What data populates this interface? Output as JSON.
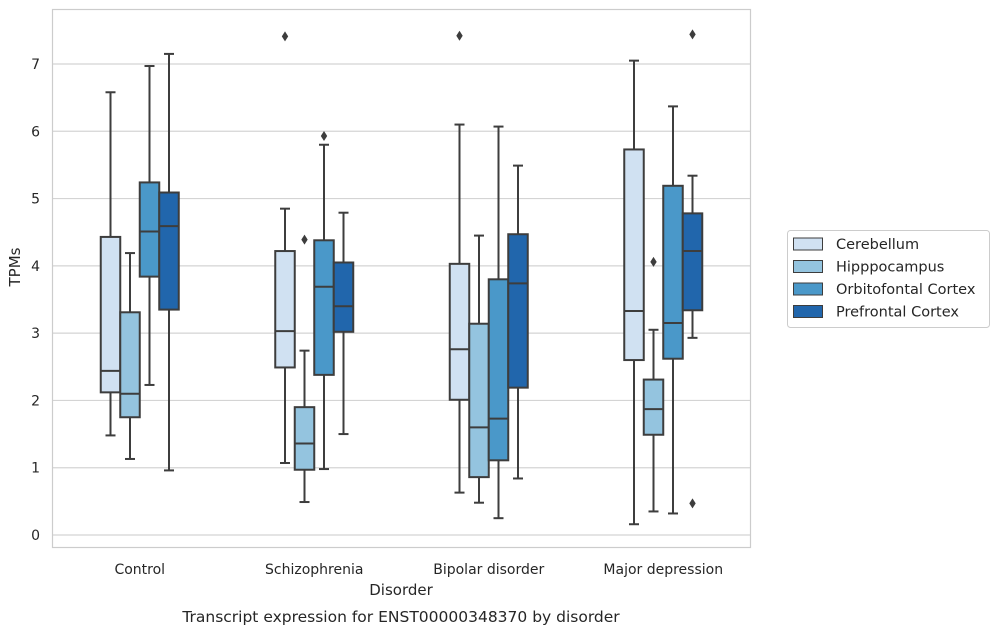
{
  "chart_data": {
    "type": "boxplot",
    "xlabel": "Disorder",
    "ylabel": "TPMs",
    "caption": "Transcript expression for ENST00000348370 by disorder",
    "ylim": [
      -0.2,
      7.85
    ],
    "yticks": [
      0,
      1,
      2,
      3,
      4,
      5,
      6,
      7
    ],
    "grid": "horizontal",
    "legend_position": "right",
    "categories": [
      "Control",
      "Schizophrenia",
      "Bipolar disorder",
      "Major depression"
    ],
    "series": [
      {
        "name": "Cerebellum",
        "color": "#d0e1f2",
        "boxes": [
          {
            "whisker_low": 1.48,
            "q1": 2.12,
            "median": 2.44,
            "q3": 4.43,
            "whisker_high": 6.58,
            "outliers": []
          },
          {
            "whisker_low": 1.07,
            "q1": 2.49,
            "median": 3.03,
            "q3": 4.22,
            "whisker_high": 4.85,
            "outliers": [
              7.41
            ]
          },
          {
            "whisker_low": 0.63,
            "q1": 2.01,
            "median": 2.76,
            "q3": 4.03,
            "whisker_high": 6.1,
            "outliers": [
              7.42
            ]
          },
          {
            "whisker_low": 0.16,
            "q1": 2.6,
            "median": 3.33,
            "q3": 5.73,
            "whisker_high": 7.05,
            "outliers": []
          }
        ]
      },
      {
        "name": "Hipppocampus",
        "color": "#94c4df",
        "boxes": [
          {
            "whisker_low": 1.13,
            "q1": 1.75,
            "median": 2.1,
            "q3": 3.31,
            "whisker_high": 4.19,
            "outliers": []
          },
          {
            "whisker_low": 0.49,
            "q1": 0.97,
            "median": 1.36,
            "q3": 1.9,
            "whisker_high": 2.74,
            "outliers": [
              4.39
            ]
          },
          {
            "whisker_low": 0.48,
            "q1": 0.86,
            "median": 1.6,
            "q3": 3.14,
            "whisker_high": 4.45,
            "outliers": []
          },
          {
            "whisker_low": 0.35,
            "q1": 1.49,
            "median": 1.87,
            "q3": 2.31,
            "whisker_high": 3.05,
            "outliers": [
              4.06
            ]
          }
        ]
      },
      {
        "name": "Orbitofontal Cortex",
        "color": "#4a98c9",
        "boxes": [
          {
            "whisker_low": 2.23,
            "q1": 3.84,
            "median": 4.51,
            "q3": 5.24,
            "whisker_high": 6.97,
            "outliers": []
          },
          {
            "whisker_low": 0.98,
            "q1": 2.38,
            "median": 3.69,
            "q3": 4.38,
            "whisker_high": 5.8,
            "outliers": [
              5.93
            ]
          },
          {
            "whisker_low": 0.25,
            "q1": 1.11,
            "median": 1.73,
            "q3": 3.8,
            "whisker_high": 6.07,
            "outliers": []
          },
          {
            "whisker_low": 0.32,
            "q1": 2.62,
            "median": 3.15,
            "q3": 5.19,
            "whisker_high": 6.37,
            "outliers": []
          }
        ]
      },
      {
        "name": "Prefrontal Cortex",
        "color": "#2166ac",
        "boxes": [
          {
            "whisker_low": 0.96,
            "q1": 3.35,
            "median": 4.59,
            "q3": 5.09,
            "whisker_high": 7.15,
            "outliers": []
          },
          {
            "whisker_low": 1.5,
            "q1": 3.02,
            "median": 3.4,
            "q3": 4.05,
            "whisker_high": 4.79,
            "outliers": []
          },
          {
            "whisker_low": 0.84,
            "q1": 2.19,
            "median": 3.74,
            "q3": 4.47,
            "whisker_high": 5.49,
            "outliers": []
          },
          {
            "whisker_low": 2.93,
            "q1": 3.34,
            "median": 4.22,
            "q3": 4.78,
            "whisker_high": 5.34,
            "outliers": [
              7.44,
              0.47
            ]
          }
        ]
      }
    ]
  }
}
